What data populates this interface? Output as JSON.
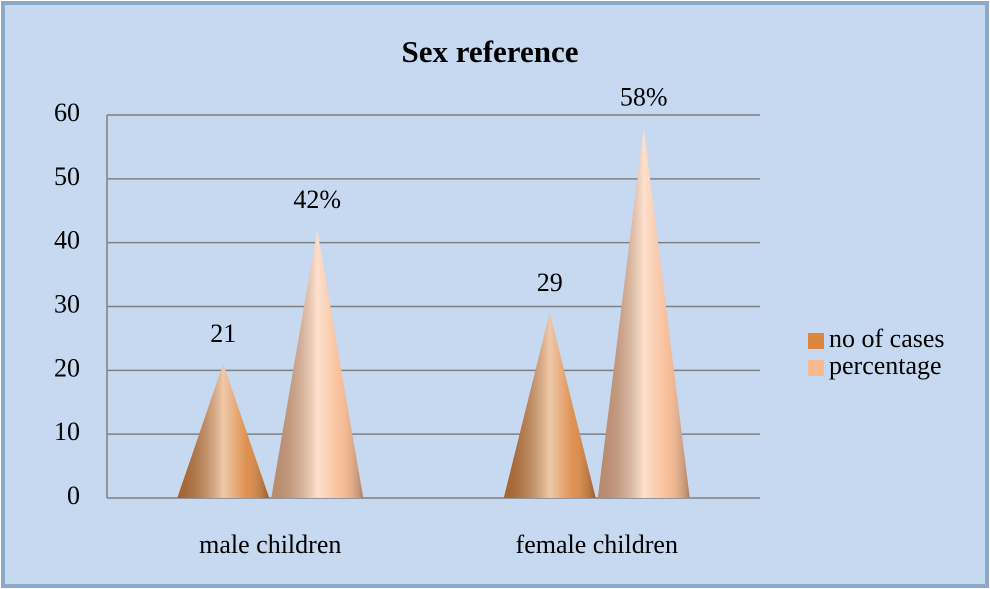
{
  "chart_data": {
    "type": "cone",
    "title": "Sex reference",
    "categories": [
      "male children",
      "female children"
    ],
    "series": [
      {
        "name": "no of cases",
        "color": "#dc853f",
        "values": [
          21,
          29
        ]
      },
      {
        "name": "percentage",
        "color": "#f8b88e",
        "values": [
          42,
          58
        ],
        "value_labels": [
          "42%",
          "58%"
        ]
      }
    ],
    "ylim": [
      0,
      60
    ],
    "yticks": [
      0,
      10,
      20,
      30,
      40,
      50,
      60
    ],
    "grid": true,
    "legend": "right"
  }
}
